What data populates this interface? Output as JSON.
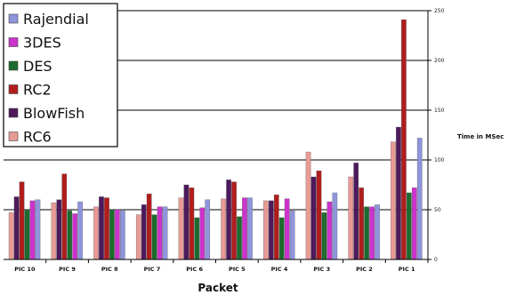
{
  "chart_data": {
    "type": "bar",
    "title": "",
    "xlabel": "Packet",
    "ylabel": "Time in MSec",
    "ylim": [
      0,
      250
    ],
    "yticks": [
      0,
      50,
      100,
      150,
      200,
      250
    ],
    "grid": true,
    "legend_position": "top-left",
    "categories": [
      "PIC 10",
      "PIC 9",
      "PIC 8",
      "PIC 7",
      "PIC 6",
      "PIC 5",
      "PIC 4",
      "PIC 3",
      "PIC 2",
      "PIC 1"
    ],
    "series": [
      {
        "name": "RC6",
        "color": "#e89a95",
        "values": [
          47,
          57,
          53,
          45,
          62,
          61,
          59,
          108,
          83,
          118
        ]
      },
      {
        "name": "BlowFish",
        "color": "#4d1a5c",
        "values": [
          63,
          60,
          63,
          55,
          75,
          80,
          59,
          83,
          97,
          133
        ]
      },
      {
        "name": "RC2",
        "color": "#b01d1d",
        "values": [
          78,
          86,
          62,
          66,
          72,
          78,
          65,
          89,
          72,
          241
        ]
      },
      {
        "name": "DES",
        "color": "#1d6b2e",
        "values": [
          50,
          49,
          50,
          45,
          42,
          43,
          42,
          47,
          53,
          67
        ]
      },
      {
        "name": "3DES",
        "color": "#cc33cc",
        "values": [
          59,
          46,
          50,
          53,
          52,
          62,
          61,
          58,
          53,
          72
        ]
      },
      {
        "name": "Rajendial",
        "color": "#8f95dc",
        "values": [
          60,
          58,
          49,
          53,
          60,
          62,
          49,
          67,
          55,
          122
        ]
      }
    ],
    "legend_order": [
      "Rajendial",
      "3DES",
      "DES",
      "RC2",
      "BlowFish",
      "RC6"
    ]
  }
}
